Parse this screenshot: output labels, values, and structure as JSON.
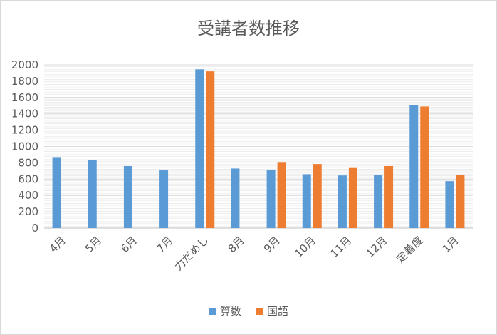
{
  "chart_data": {
    "type": "bar",
    "title": "受講者数推移",
    "categories": [
      "4月",
      "5月",
      "6月",
      "7月",
      "力だめし",
      "8月",
      "9月",
      "10月",
      "11月",
      "12月",
      "定着度",
      "1月"
    ],
    "series": [
      {
        "name": "算数",
        "color": "#5b9bd5",
        "values": [
          870,
          830,
          760,
          715,
          1945,
          730,
          715,
          660,
          645,
          650,
          1510,
          575
        ]
      },
      {
        "name": "国語",
        "color": "#ed7d31",
        "values": [
          null,
          null,
          null,
          null,
          1920,
          null,
          810,
          785,
          745,
          760,
          1490,
          650
        ]
      }
    ],
    "ylim": [
      0,
      2000
    ],
    "yticks": [
      0,
      200,
      400,
      600,
      800,
      1000,
      1200,
      1400,
      1600,
      1800,
      2000
    ],
    "grid": true,
    "legend": "bottom",
    "xlabel": "",
    "ylabel": ""
  }
}
